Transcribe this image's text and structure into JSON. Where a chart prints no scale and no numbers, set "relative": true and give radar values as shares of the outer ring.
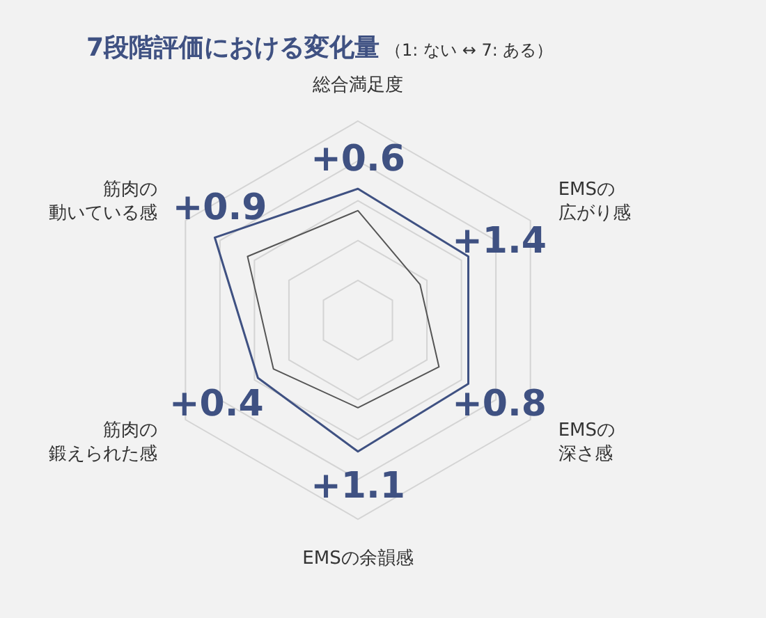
{
  "chart_data": {
    "type": "radar",
    "relative": true,
    "title": "7段階評価における変化量",
    "subtitle": "（1: ない ↔ 7: ある）",
    "categories": [
      "総合満足度",
      "EMSの広がり感",
      "EMSの深さ感",
      "EMSの余韻感",
      "筋肉の鍛えられた感",
      "筋肉の動いている感"
    ],
    "series": [
      {
        "color": "#555555",
        "values": [
          0.55,
          0.36,
          0.47,
          0.44,
          0.49,
          0.64
        ]
      },
      {
        "color": "#3f5182",
        "values": [
          0.66,
          0.64,
          0.64,
          0.66,
          0.58,
          0.83
        ]
      }
    ],
    "annotations": [
      "+0.6",
      "+1.4",
      "+0.8",
      "+1.1",
      "+0.4",
      "+0.9"
    ]
  }
}
